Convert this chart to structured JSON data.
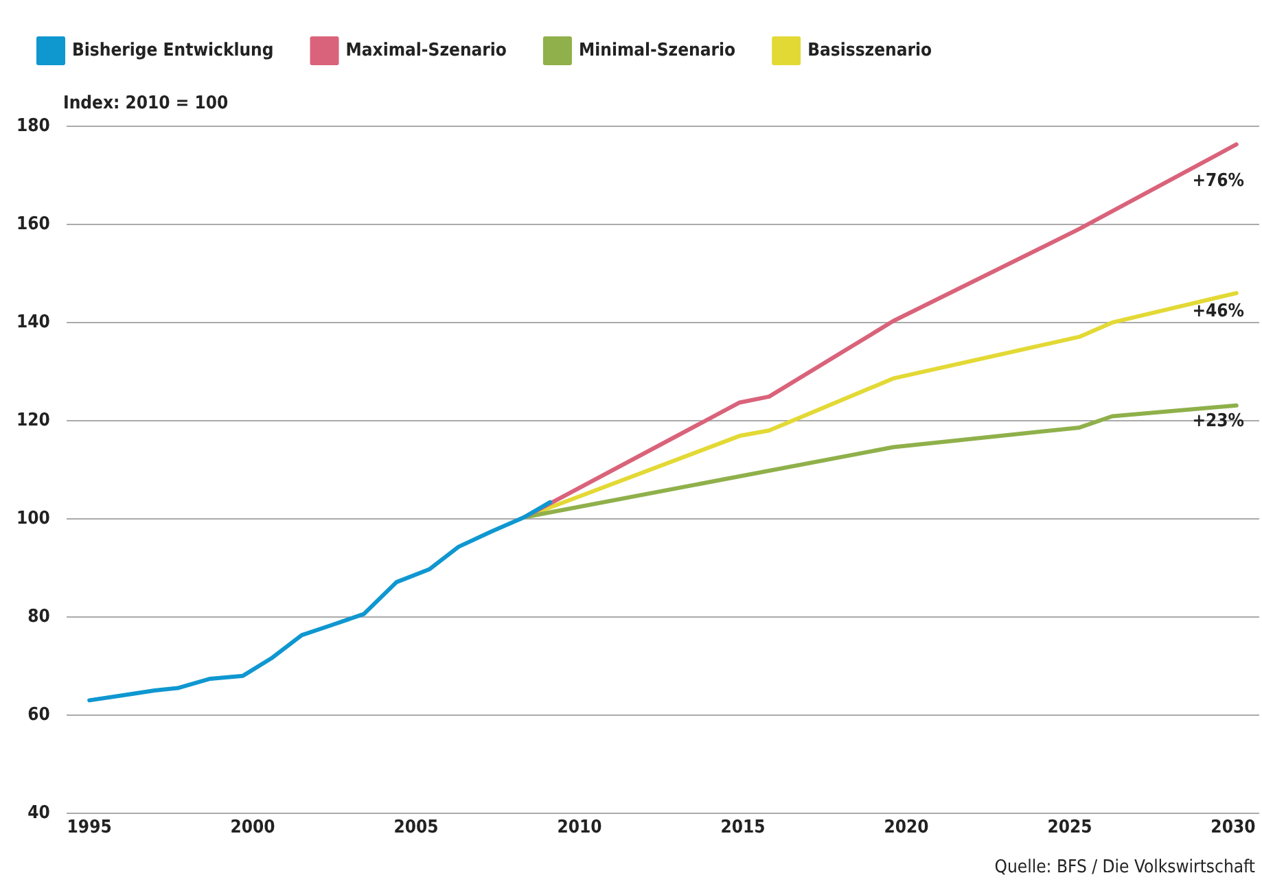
{
  "chart_data": {
    "type": "line",
    "ylabel": "Index: 2010 = 100",
    "xlim": [
      1994.3,
      2030.8
    ],
    "xticks": [
      1995,
      2000,
      2005,
      2010,
      2015,
      2020,
      2025,
      2030
    ],
    "ylim": [
      40,
      180
    ],
    "yticks": [
      40,
      60,
      80,
      100,
      120,
      140,
      160,
      180
    ],
    "grid": "y",
    "legend": "top left",
    "marker": "none",
    "line_style": "solid",
    "series": [
      {
        "name": "Bisherige Entwicklung",
        "color": "#0f97d0",
        "x": [
          1995,
          1996,
          1997,
          1997.7,
          1998.7,
          1999.7,
          2000.6,
          2001.5,
          2002.4,
          2003.4,
          2004.4,
          2005.4,
          2006.3,
          2007.3,
          2008.3,
          2009.1
        ],
        "values": [
          63,
          64,
          65,
          65.5,
          67.4,
          68,
          71.7,
          76.3,
          78.3,
          80.6,
          87.1,
          89.7,
          94.3,
          97.4,
          100.3,
          103.4
        ]
      },
      {
        "name": "Maximal-Szenario",
        "color": "#d9637a",
        "x": [
          2008.3,
          2014.9,
          2015.8,
          2019.6,
          2025.3,
          2030.1
        ],
        "values": [
          100.3,
          123.7,
          124.9,
          140.3,
          159.1,
          176.3
        ]
      },
      {
        "name": "Minimal-Szenario",
        "color": "#8fb04a",
        "x": [
          2008.3,
          2019.6,
          2025.3,
          2026.3,
          2030.1
        ],
        "values": [
          100.3,
          114.6,
          118.6,
          120.9,
          123.1
        ]
      },
      {
        "name": "Basisszenario",
        "color": "#e3d935",
        "x": [
          2008.3,
          2014.9,
          2015.8,
          2019.6,
          2025.3,
          2026.3,
          2030.1
        ],
        "values": [
          100.3,
          116.9,
          118,
          128.6,
          137.1,
          140,
          146
        ]
      }
    ],
    "annotations": [
      "+76%",
      "+46%",
      "+23%",
      "Quelle: BFS / Die Volkswirtschaft"
    ]
  }
}
